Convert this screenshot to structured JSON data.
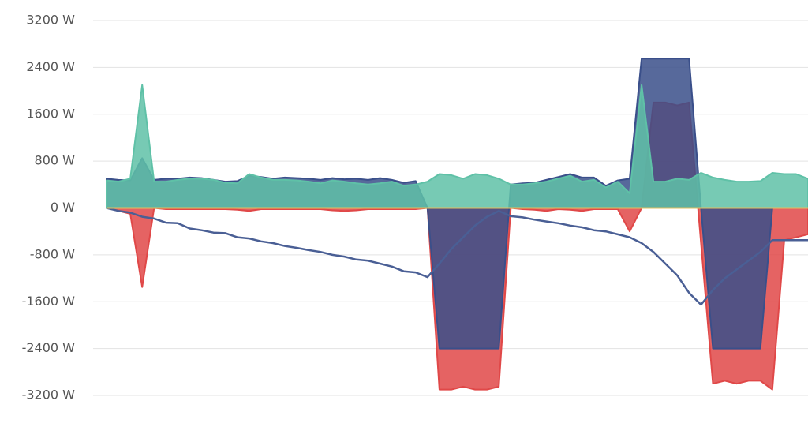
{
  "chart_data": {
    "type": "area",
    "categories": [
      null,
      null,
      null,
      null,
      null,
      null,
      null,
      null,
      null,
      null,
      null,
      null,
      null,
      null,
      null,
      null,
      null,
      null,
      null,
      null,
      null,
      null,
      null,
      null,
      null,
      null,
      null,
      null,
      null,
      null,
      null,
      null,
      null,
      null,
      null,
      null,
      null,
      null,
      null,
      null,
      null,
      null,
      null,
      null,
      null,
      null,
      null,
      null,
      null,
      null,
      null,
      null,
      null,
      null,
      null,
      null,
      null,
      null,
      null,
      null
    ],
    "ylim": [
      -3200,
      3200
    ],
    "yticks": [
      {
        "value": -3200,
        "label": "-3200 W"
      },
      {
        "value": -2400,
        "label": "-2400 W"
      },
      {
        "value": -1600,
        "label": "-1600 W"
      },
      {
        "value": -800,
        "label": "-800 W"
      },
      {
        "value": 0,
        "label": "0 W"
      },
      {
        "value": 800,
        "label": "800 W"
      },
      {
        "value": 1600,
        "label": "1600 W"
      },
      {
        "value": 2400,
        "label": "2400 W"
      },
      {
        "value": 3200,
        "label": "3200 W"
      }
    ],
    "grid": true,
    "series": [
      {
        "type": "area",
        "color": "#e04848",
        "values": [
          0,
          -50,
          -100,
          -1350,
          0,
          -20,
          -20,
          -20,
          -20,
          -20,
          -20,
          -30,
          -50,
          -20,
          -20,
          -20,
          -20,
          -20,
          -20,
          -40,
          -50,
          -40,
          -20,
          -20,
          -20,
          -20,
          -20,
          0,
          -3100,
          -3100,
          -3050,
          -3100,
          -3100,
          -3050,
          0,
          -20,
          -30,
          -50,
          -20,
          -30,
          -50,
          -20,
          -20,
          -20,
          -400,
          0,
          1800,
          1800,
          1750,
          1800,
          -600,
          -3000,
          -2950,
          -3000,
          -2950,
          -2950,
          -3100,
          -550,
          -500,
          -450
        ]
      },
      {
        "type": "area",
        "color": "#3a4f8a",
        "values": [
          500,
          480,
          470,
          850,
          480,
          500,
          500,
          520,
          510,
          480,
          450,
          460,
          550,
          530,
          500,
          520,
          510,
          500,
          480,
          510,
          490,
          500,
          480,
          510,
          480,
          430,
          460,
          0,
          -2400,
          -2400,
          -2400,
          -2400,
          -2400,
          -2400,
          400,
          420,
          430,
          480,
          530,
          580,
          520,
          520,
          380,
          470,
          500,
          2550,
          2550,
          2550,
          2550,
          2550,
          0,
          -2400,
          -2400,
          -2400,
          -2400,
          -2400,
          0,
          0,
          0,
          0
        ]
      },
      {
        "type": "area",
        "color": "#5fc1a7",
        "values": [
          470,
          450,
          500,
          2100,
          450,
          450,
          480,
          500,
          500,
          480,
          430,
          420,
          580,
          520,
          480,
          480,
          470,
          450,
          420,
          470,
          450,
          420,
          400,
          420,
          450,
          380,
          400,
          450,
          580,
          560,
          500,
          580,
          560,
          500,
          400,
          400,
          420,
          450,
          500,
          550,
          450,
          480,
          350,
          450,
          250,
          2100,
          450,
          450,
          500,
          480,
          600,
          520,
          480,
          450,
          450,
          460,
          600,
          580,
          580,
          500
        ]
      },
      {
        "type": "line",
        "color": "#4a5f95",
        "values": [
          0,
          -50,
          -80,
          -150,
          -180,
          -250,
          -260,
          -350,
          -380,
          -420,
          -430,
          -500,
          -520,
          -570,
          -600,
          -650,
          -680,
          -720,
          -750,
          -800,
          -830,
          -880,
          -900,
          -950,
          -1000,
          -1080,
          -1100,
          -1180,
          -950,
          -700,
          -500,
          -300,
          -150,
          -50,
          -140,
          -160,
          -200,
          -230,
          -260,
          -300,
          -330,
          -380,
          -400,
          -450,
          -500,
          -600,
          -750,
          -950,
          -1150,
          -1450,
          -1650,
          -1400,
          -1200,
          -1050,
          -900,
          -750,
          -550,
          -550,
          -550,
          -550
        ]
      }
    ]
  }
}
